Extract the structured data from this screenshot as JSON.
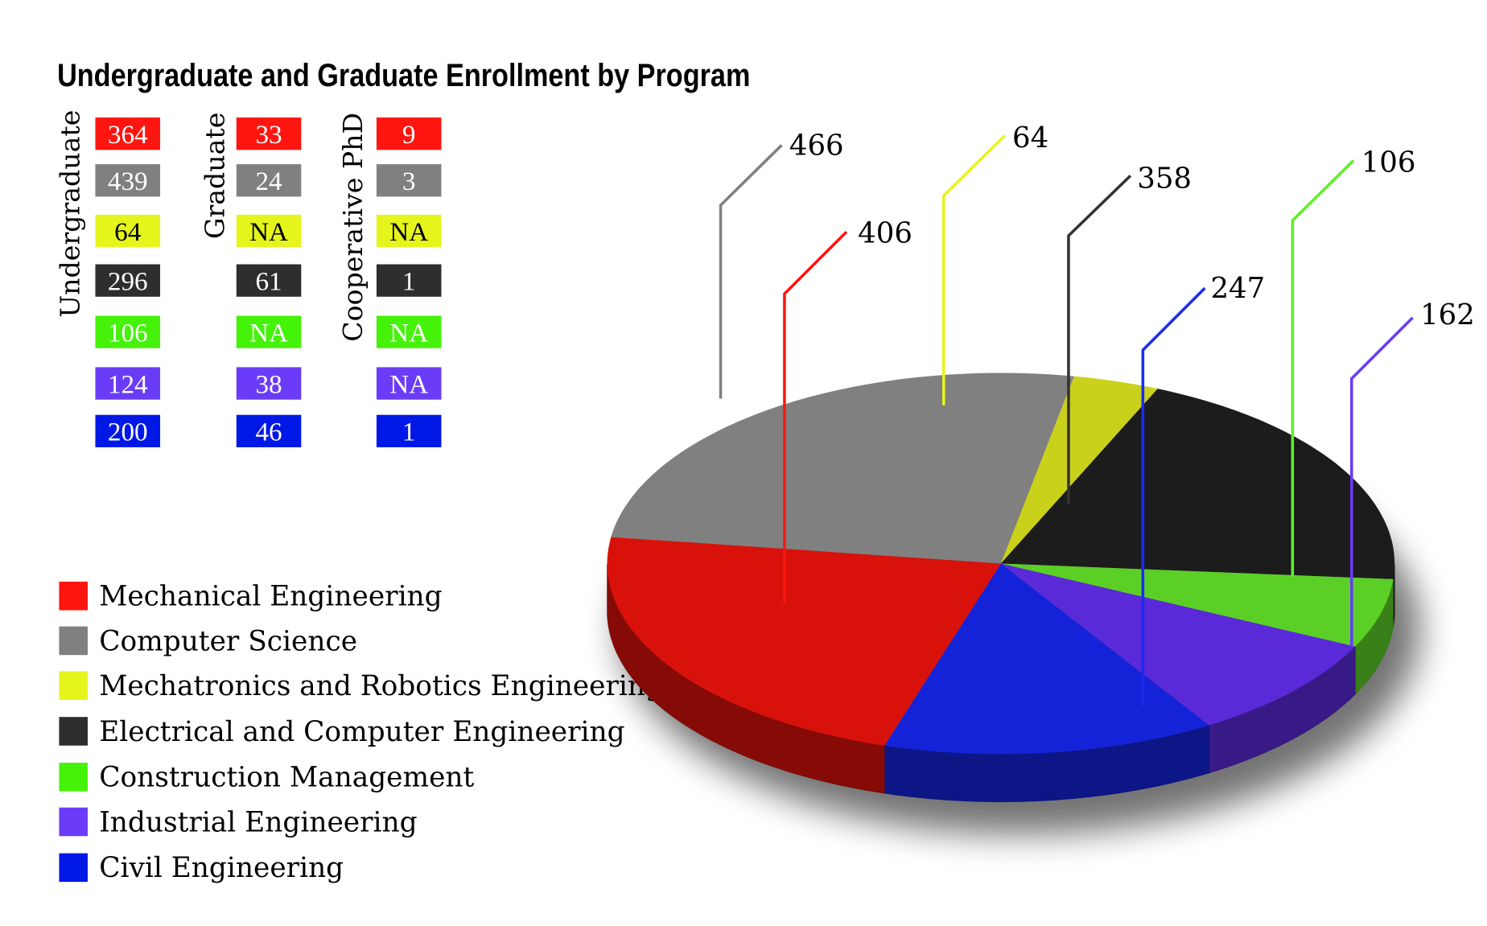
{
  "chart_data": {
    "type": "pie",
    "title": "Undergraduate and Graduate Enrollment by Program",
    "categories": [
      "Mechanical Engineering",
      "Computer Science",
      "Mechatronics and Robotics Engineering",
      "Electrical and Computer Engineering",
      "Construction Management",
      "Industrial Engineering",
      "Civil Engineering"
    ],
    "values": [
      406,
      466,
      64,
      358,
      106,
      162,
      247
    ],
    "value_labels": [
      "406",
      "466",
      "64",
      "358",
      "106",
      "162",
      "247"
    ],
    "colors": [
      "#ff1510",
      "#808080",
      "#e5f51c",
      "#2e2e2e",
      "#45f20a",
      "#6a3cf7",
      "#0018e6"
    ],
    "pie_top_colors": [
      "#d8120b",
      "#808080",
      "#c9d11a",
      "#1c1c1c",
      "#5ccf26",
      "#5a2ad8",
      "#1523d8"
    ],
    "legend_placement": "bottom-left",
    "table": {
      "columns": [
        "Undergraduate",
        "Graduate",
        "Cooperative PhD"
      ],
      "rows": [
        [
          "364",
          "33",
          "9"
        ],
        [
          "439",
          "24",
          "3"
        ],
        [
          "64",
          "NA",
          "NA"
        ],
        [
          "296",
          "61",
          "1"
        ],
        [
          "106",
          "NA",
          "NA"
        ],
        [
          "124",
          "38",
          "NA"
        ],
        [
          "200",
          "46",
          "1"
        ]
      ]
    }
  }
}
